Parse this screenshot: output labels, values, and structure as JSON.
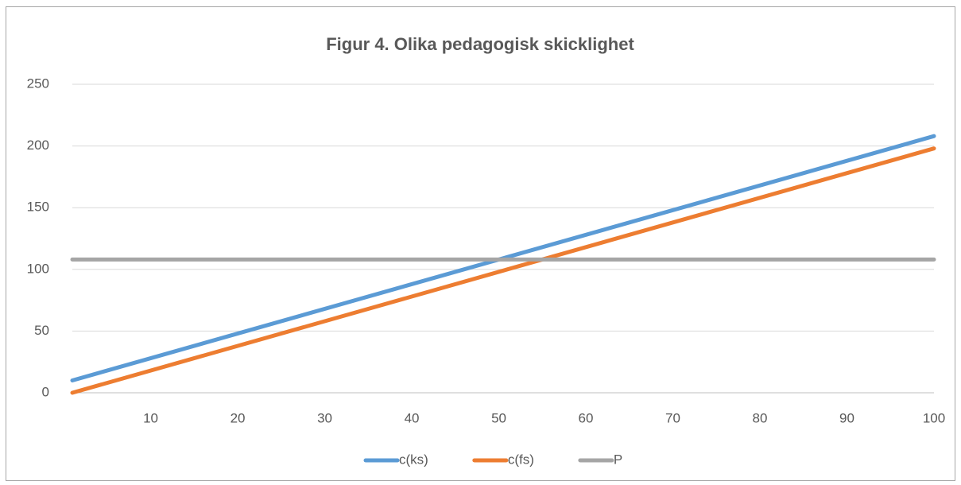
{
  "chart_data": {
    "type": "line",
    "title": "Figur 4. Olika pedagogisk skicklighet",
    "x": [
      1,
      100
    ],
    "series": [
      {
        "name": "c(ks)",
        "color": "#5b9bd5",
        "values": [
          10,
          208
        ]
      },
      {
        "name": "c(fs)",
        "color": "#ed7d31",
        "values": [
          0,
          198
        ]
      },
      {
        "name": "P",
        "color": "#a5a5a5",
        "values": [
          108,
          108
        ]
      }
    ],
    "xlim": [
      1,
      100
    ],
    "xticks": [
      10,
      20,
      30,
      40,
      50,
      60,
      70,
      80,
      90,
      100
    ],
    "ylim": [
      0,
      250
    ],
    "yticks": [
      0,
      50,
      100,
      150,
      200,
      250
    ],
    "grid": true,
    "legend": "bottom"
  }
}
